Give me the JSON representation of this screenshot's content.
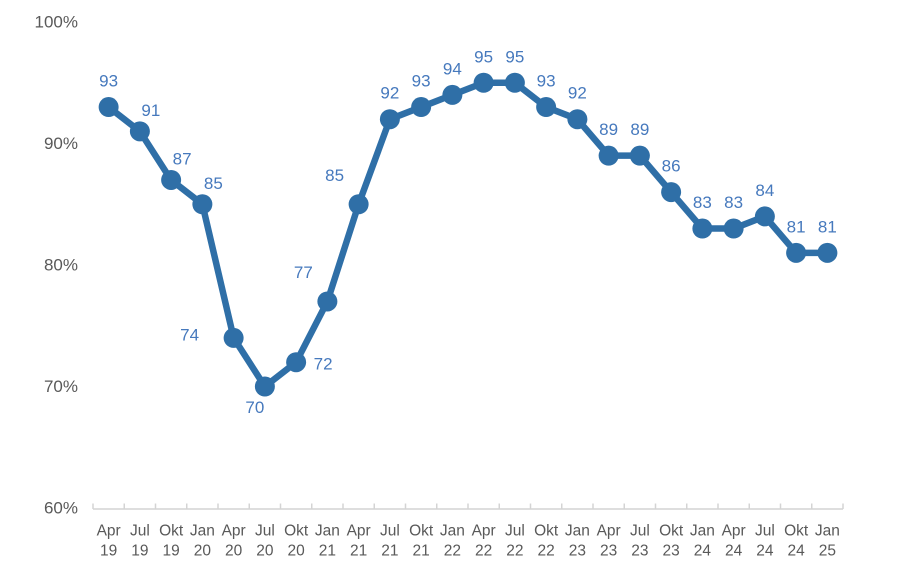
{
  "page": {
    "background": "#ffffff"
  },
  "chart_data": {
    "type": "line",
    "title": "",
    "xlabel": "",
    "ylabel": "",
    "categories": [
      "Apr 19",
      "Jul 19",
      "Okt 19",
      "Jan 20",
      "Apr 20",
      "Jul 20",
      "Okt 20",
      "Jan 21",
      "Apr 21",
      "Jul 21",
      "Okt 21",
      "Jan 22",
      "Apr 22",
      "Jul 22",
      "Okt 22",
      "Jan 23",
      "Apr 23",
      "Jul 23",
      "Okt 23",
      "Jan 24",
      "Apr 24",
      "Jul 24",
      "Okt 24",
      "Jan 25"
    ],
    "values": [
      93,
      91,
      87,
      85,
      74,
      70,
      72,
      77,
      85,
      92,
      93,
      94,
      95,
      95,
      93,
      92,
      89,
      89,
      86,
      83,
      83,
      84,
      81,
      81
    ],
    "ylim": [
      60,
      100
    ],
    "y_tick_values": [
      100,
      90,
      80,
      70,
      60
    ],
    "y_tick_labels": [
      "100%",
      "90%",
      "80%",
      "70%",
      "60%"
    ],
    "data_labels_visible": true,
    "label_placements": [
      "above",
      "above-right",
      "above-right",
      "above-right",
      "left",
      "below",
      "right",
      "above-left",
      "above-left",
      "above",
      "above",
      "above",
      "above",
      "above",
      "above",
      "above",
      "above",
      "above",
      "above",
      "above",
      "above",
      "above",
      "above",
      "above"
    ],
    "grid": false,
    "legend": false,
    "colors": {
      "line": "#2f6fa7",
      "marker": "#2f6fa7",
      "data_label": "#4679bd",
      "axis_text": "#595959",
      "axis_line": "#d4d4d4"
    }
  }
}
